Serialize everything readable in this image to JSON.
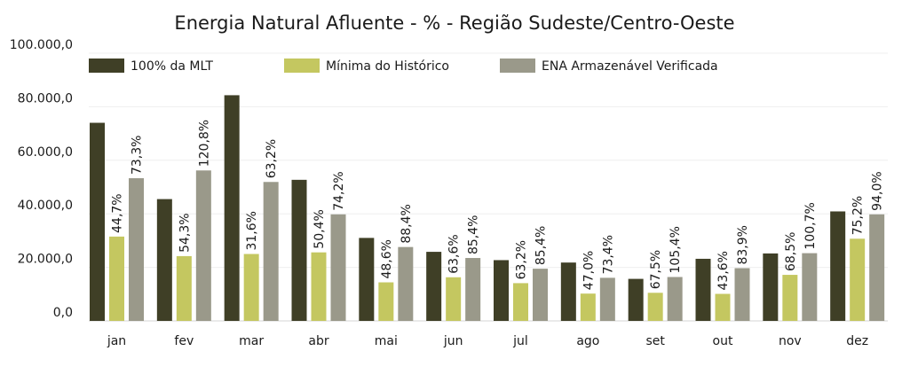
{
  "chart_data": {
    "type": "bar",
    "title": "Energia Natural Afluente - % - Região Sudeste/Centro-Oeste",
    "xlabel": "",
    "ylabel": "",
    "ylim": [
      0,
      100000
    ],
    "yticks": [
      0,
      20000,
      40000,
      60000,
      80000,
      100000
    ],
    "ytick_labels": [
      "0,0",
      "20.000,0",
      "40.000,0",
      "60.000,0",
      "80.000,0",
      "100.000,0"
    ],
    "grid": true,
    "legend_position": "top",
    "categories": [
      "jan",
      "fev",
      "mar",
      "abr",
      "mai",
      "jun",
      "jul",
      "ago",
      "set",
      "out",
      "nov",
      "dez"
    ],
    "series": [
      {
        "name": "100% da MLT",
        "color": "#3f3f26",
        "values": [
          74000,
          45500,
          84300,
          52700,
          31000,
          25800,
          22700,
          21800,
          15700,
          23200,
          25200,
          40900
        ]
      },
      {
        "name": "Mínima do Histórico",
        "color": "#c4c760",
        "values": [
          31500,
          24200,
          25000,
          25600,
          14400,
          16300,
          14100,
          10200,
          10500,
          10100,
          17200,
          30700
        ],
        "labels": [
          "44,7%",
          "54,3%",
          "31,6%",
          "50,4%",
          "48,6%",
          "63,6%",
          "63,2%",
          "47,0%",
          "67,5%",
          "43,6%",
          "68,5%",
          "75,2%"
        ]
      },
      {
        "name": "ENA Armazenável Verificada",
        "color": "#9a998a",
        "values": [
          53300,
          56200,
          51900,
          39800,
          27600,
          23500,
          19500,
          16100,
          16400,
          19700,
          25300,
          39800
        ],
        "labels": [
          "73,3%",
          "120,8%",
          "63,2%",
          "74,2%",
          "88,4%",
          "85,4%",
          "85,4%",
          "73,4%",
          "105,4%",
          "83,9%",
          "100,7%",
          "94,0%"
        ]
      }
    ]
  }
}
